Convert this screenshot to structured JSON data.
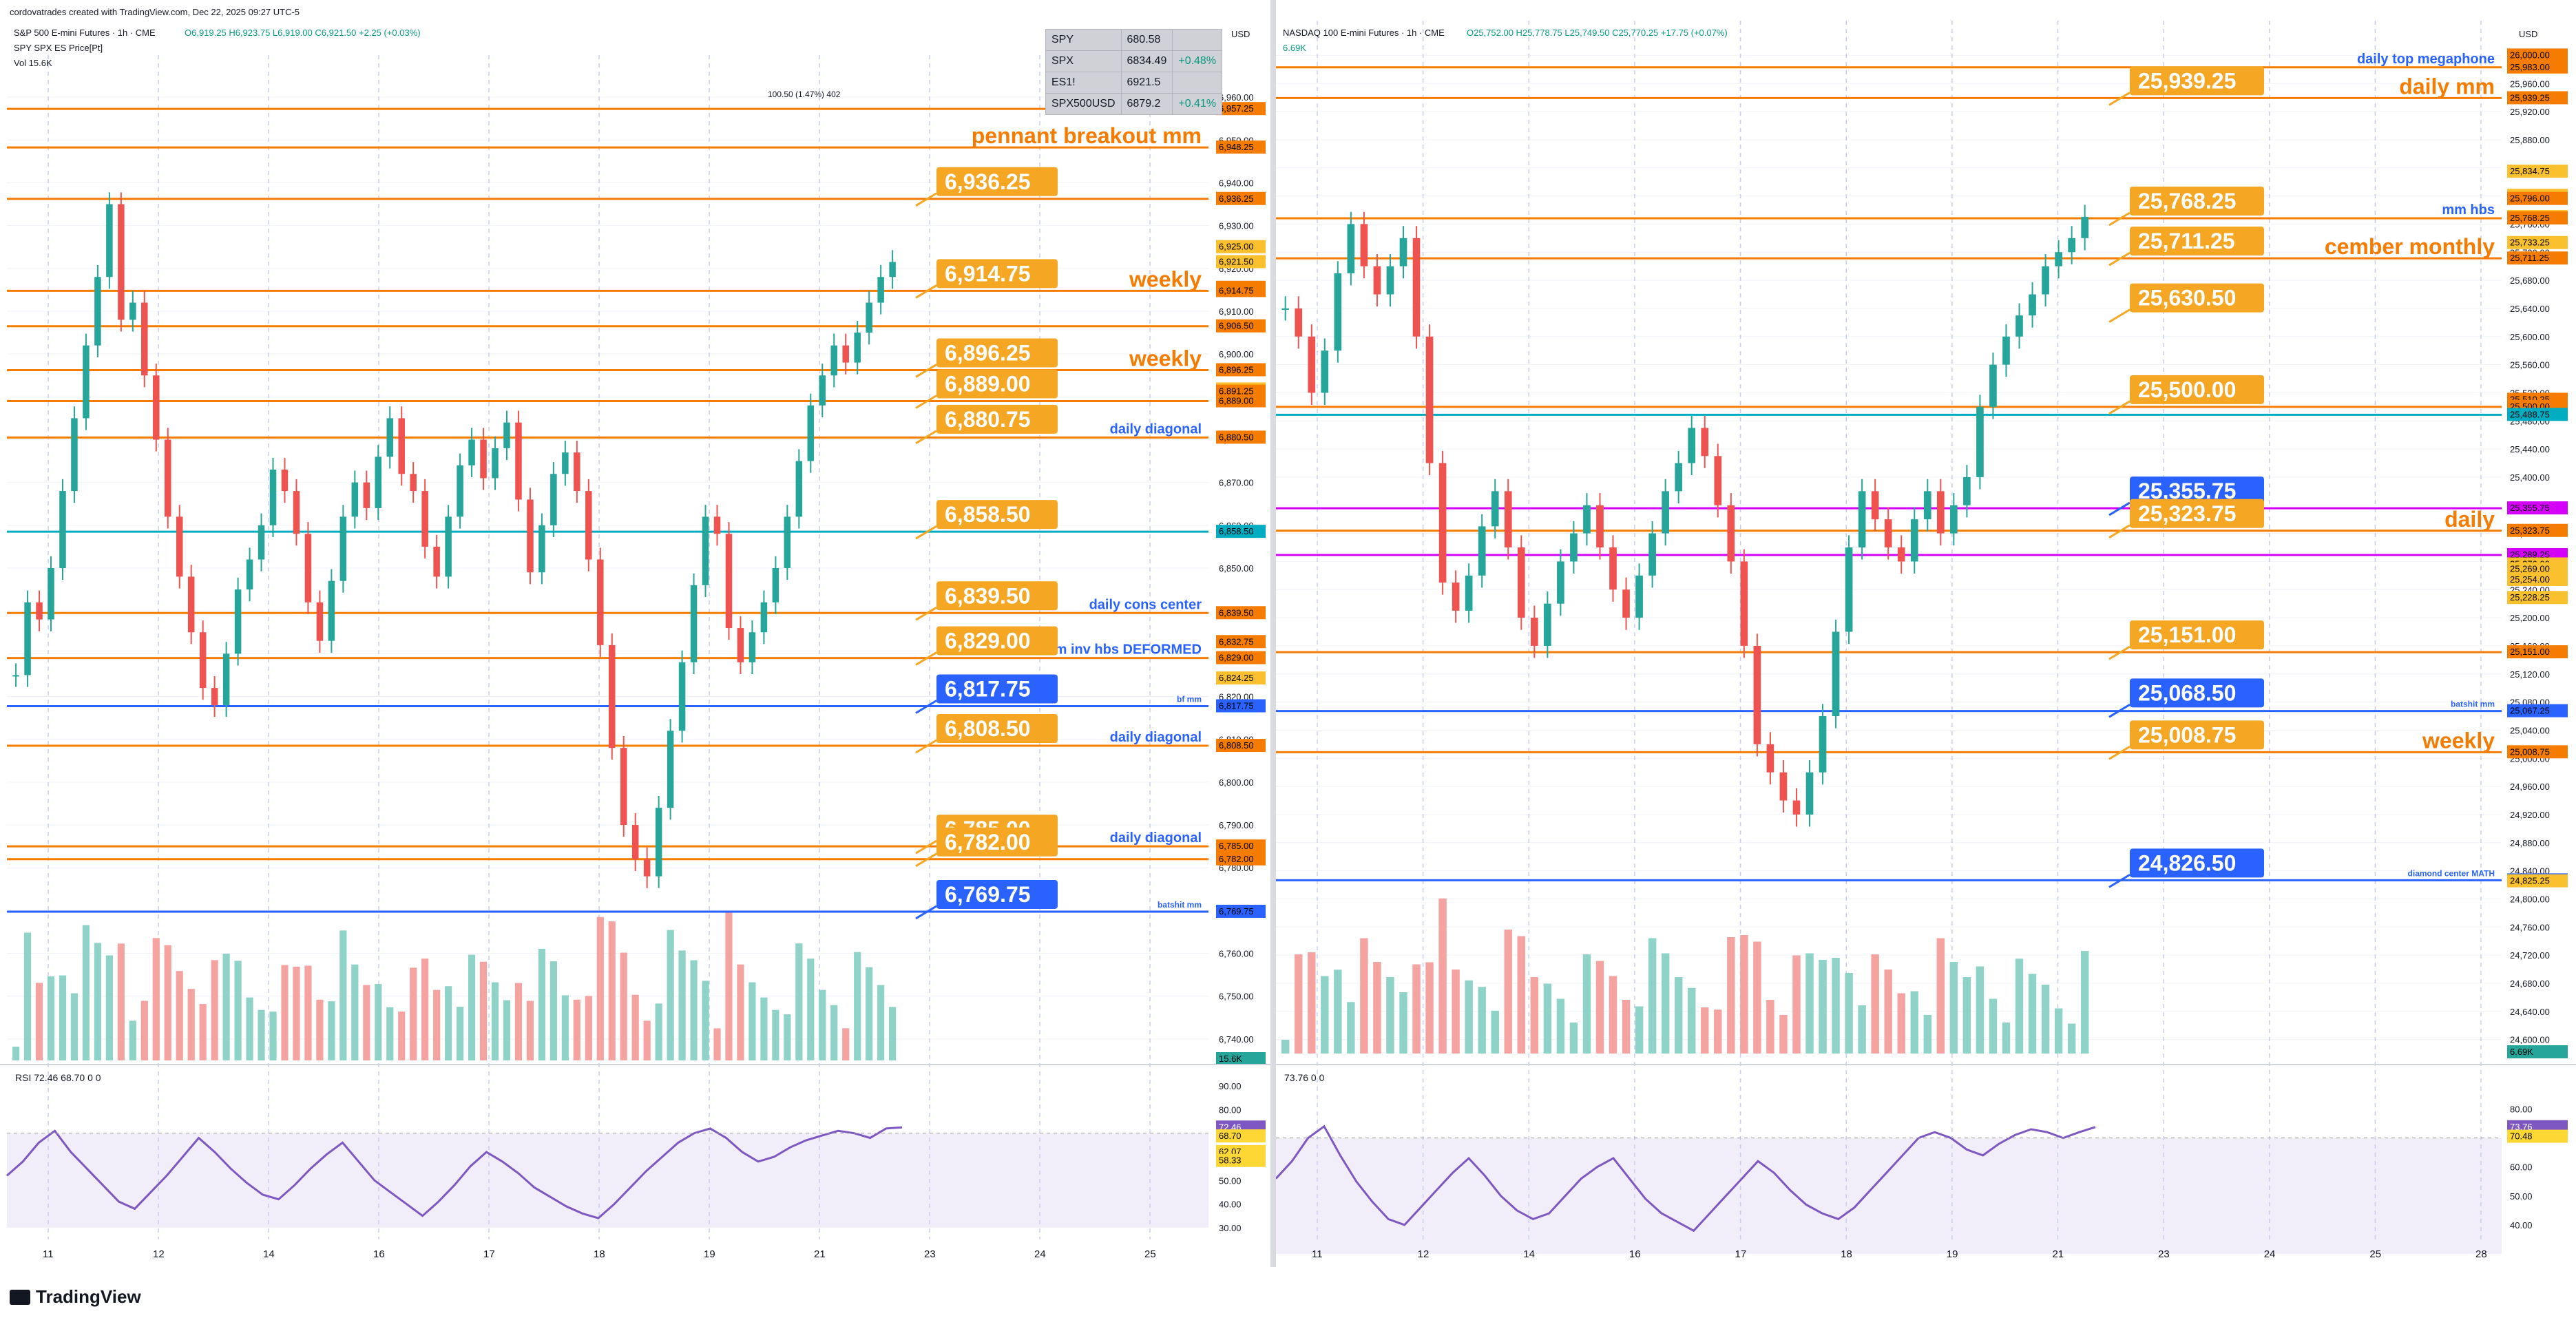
{
  "header": {
    "credit": "cordovatrades created with TradingView.com, Dec 22, 2025 09:27 UTC-5",
    "left_symbol": "S&P 500 E-mini Futures · 1h · CME",
    "left_ohlc": "O6,919.25 H6,923.75 L6,919.00 C6,921.50 +2.25 (+0.03%)",
    "left_overlay": "SPY SPX ES Price[Pt]",
    "left_volume": "Vol 15.6K",
    "right_symbol": "NASDAQ 100 E-mini Futures · 1h · CME",
    "right_ohlc": "O25,752.00 H25,778.75 L25,749.50 C25,770.25 +17.75 (+0.07%)",
    "right_volume": "6.69K",
    "currency": "USD"
  },
  "quote_table": [
    {
      "sym": "SPY",
      "price": "680.58",
      "chg": ""
    },
    {
      "sym": "SPX",
      "price": "6834.49",
      "chg": "+0.48%"
    },
    {
      "sym": "ES1!",
      "price": "6921.5",
      "chg": ""
    },
    {
      "sym": "SPX500USD",
      "price": "6879.2",
      "chg": "+0.41%"
    }
  ],
  "footer": {
    "logo": "TradingView"
  },
  "colors": {
    "orange": "#f5a623",
    "blue": "#2962ff",
    "cyan": "#00bcd4",
    "magenta": "#e040fb",
    "up": "#26a69a",
    "down": "#ef5350",
    "rsi": "#7e57c2"
  },
  "chart_data": [
    {
      "type": "candlestick",
      "panel": "left",
      "symbol": "S&P 500 E-mini Futures",
      "interval": "1h",
      "ylim": [
        6735,
        6965
      ],
      "y_ticks": [
        "6,960.00",
        "6,950.00",
        "6,940.00",
        "6,930.00",
        "6,920.00",
        "6,910.00",
        "6,900.00",
        "6,890.00",
        "6,880.00",
        "6,870.00",
        "6,860.00",
        "6,850.00",
        "6,840.00",
        "6,830.00",
        "6,820.00",
        "6,810.00",
        "6,800.00",
        "6,790.00",
        "6,780.00",
        "6,770.00",
        "6,760.00",
        "6,750.00",
        "6,740.00"
      ],
      "x_ticks": [
        "11",
        "12",
        "14",
        "16",
        "17",
        "18",
        "19",
        "21",
        "23",
        "24",
        "25"
      ],
      "closes": [
        6825,
        6842,
        6838,
        6850,
        6868,
        6885,
        6902,
        6918,
        6935,
        6908,
        6912,
        6895,
        6880,
        6862,
        6848,
        6835,
        6822,
        6818,
        6830,
        6845,
        6852,
        6860,
        6873,
        6868,
        6858,
        6842,
        6833,
        6847,
        6862,
        6870,
        6864,
        6876,
        6885,
        6872,
        6868,
        6855,
        6848,
        6862,
        6874,
        6880,
        6871,
        6878,
        6884,
        6866,
        6849,
        6860,
        6872,
        6877,
        6868,
        6852,
        6832,
        6808,
        6790,
        6782,
        6778,
        6794,
        6812,
        6828,
        6846,
        6862,
        6858,
        6836,
        6828,
        6835,
        6842,
        6850,
        6862,
        6875,
        6888,
        6895,
        6902,
        6898,
        6905,
        6912,
        6918,
        6921.5
      ],
      "price_labels": [
        "6,957.25",
        "6,948.25",
        "6,936.25",
        "6,925.00",
        "6,921.50",
        "6,915.50",
        "6,914.75",
        "6,906.50",
        "6,896.25",
        "6,891.75",
        "6,891.25",
        "6,889.00",
        "6,880.50",
        "6,858.50",
        "6,839.50",
        "6,832.75",
        "6,829.00",
        "6,824.25",
        "6,817.75",
        "6,808.50",
        "6,785.00",
        "6,782.00",
        "6,769.75",
        "15.6K"
      ],
      "levels": [
        {
          "price": 6957.25,
          "color": "#f57c00",
          "label": ""
        },
        {
          "price": 6948.25,
          "color": "#f57c00",
          "label": "pennant breakout mm"
        },
        {
          "price": 6936.25,
          "color": "#f57c00",
          "label": ""
        },
        {
          "price": 6914.75,
          "color": "#f57c00",
          "label": "weekly"
        },
        {
          "price": 6906.5,
          "color": "#f57c00",
          "label": ""
        },
        {
          "price": 6896.25,
          "color": "#f57c00",
          "label": "weekly"
        },
        {
          "price": 6889.0,
          "color": "#f57c00",
          "label": ""
        },
        {
          "price": 6880.5,
          "color": "#f57c00",
          "label": "daily diagonal"
        },
        {
          "price": 6858.5,
          "color": "#00acc1",
          "label": ""
        },
        {
          "price": 6839.5,
          "color": "#f57c00",
          "label": "daily cons center"
        },
        {
          "price": 6829.0,
          "color": "#f57c00",
          "label": "mm inv hbs  DEFORMED"
        },
        {
          "price": 6817.75,
          "color": "#2962ff",
          "label": "bf mm"
        },
        {
          "price": 6808.5,
          "color": "#f57c00",
          "label": "daily diagonal"
        },
        {
          "price": 6785.0,
          "color": "#f57c00",
          "label": "daily diagonal"
        },
        {
          "price": 6782.0,
          "color": "#f57c00",
          "label": ""
        },
        {
          "price": 6769.75,
          "color": "#2962ff",
          "label": "batshit mm"
        }
      ],
      "callouts": [
        "6,936.25",
        "6,914.75",
        "6,896.25",
        "6,889.00",
        "6,880.75",
        "6,858.50",
        "6,839.50",
        "6,829.00",
        "6,817.75",
        "6,808.50",
        "6,785.00",
        "6,782.00",
        "6,769.75"
      ],
      "annotation": "100.50 (1.47%) 402",
      "volume_note": "volume bars shown as histogram",
      "rsi": {
        "label": "RSI 72.46 68.70 0 0",
        "ylim": [
          25,
          95
        ],
        "y_ticks": [
          "90.00",
          "80.00",
          "70.00",
          "60.00",
          "50.00",
          "40.00",
          "30.00"
        ],
        "values": [
          52,
          58,
          66,
          71,
          62,
          55,
          48,
          41,
          38,
          45,
          52,
          60,
          68,
          62,
          55,
          49,
          44,
          42,
          48,
          55,
          61,
          66,
          58,
          50,
          45,
          40,
          35,
          41,
          48,
          56,
          62,
          58,
          53,
          47,
          43,
          39,
          36,
          34,
          40,
          47,
          54,
          60,
          66,
          70,
          72,
          68,
          62,
          58,
          60,
          64,
          67,
          69,
          71,
          70,
          68,
          72,
          72.46
        ],
        "price_labels": [
          "72.46",
          "68.70",
          "62.07",
          "58.33"
        ]
      }
    },
    {
      "type": "candlestick",
      "panel": "right",
      "symbol": "NASDAQ 100 E-mini Futures",
      "interval": "1h",
      "ylim": [
        24580,
        26020
      ],
      "y_ticks": [
        "26,000.00",
        "25,960.00",
        "25,920.00",
        "25,880.00",
        "25,840.00",
        "25,800.00",
        "25,760.00",
        "25,720.00",
        "25,680.00",
        "25,640.00",
        "25,600.00",
        "25,560.00",
        "25,520.00",
        "25,480.00",
        "25,440.00",
        "25,400.00",
        "25,360.00",
        "25,320.00",
        "25,280.00",
        "25,240.00",
        "25,200.00",
        "25,160.00",
        "25,120.00",
        "25,080.00",
        "25,040.00",
        "25,000.00",
        "24,960.00",
        "24,920.00",
        "24,880.00",
        "24,840.00",
        "24,800.00",
        "24,760.00",
        "24,720.00",
        "24,680.00",
        "24,640.00",
        "24,600.00"
      ],
      "x_ticks": [
        "11",
        "12",
        "14",
        "16",
        "17",
        "18",
        "19",
        "21",
        "23",
        "24",
        "25",
        "28"
      ],
      "closes": [
        25640,
        25600,
        25520,
        25580,
        25690,
        25760,
        25700,
        25660,
        25700,
        25740,
        25600,
        25420,
        25250,
        25210,
        25260,
        25330,
        25380,
        25300,
        25200,
        25160,
        25220,
        25280,
        25320,
        25360,
        25300,
        25240,
        25200,
        25260,
        25320,
        25380,
        25420,
        25470,
        25430,
        25360,
        25280,
        25160,
        25020,
        24980,
        24940,
        24920,
        24980,
        25060,
        25180,
        25300,
        25380,
        25340,
        25300,
        25280,
        25340,
        25380,
        25320,
        25360,
        25400,
        25500,
        25560,
        25600,
        25630,
        25660,
        25700,
        25720,
        25740,
        25770.25
      ],
      "price_labels": [
        "26,000.00",
        "25,983.00",
        "25,939.25",
        "25,834.75",
        "25,800.50",
        "25,796.00",
        "25,770.25",
        "25,768.25",
        "25,733.25",
        "25,711.25",
        "25,510.25",
        "25,500.00",
        "25,488.75",
        "25,355.75",
        "25,323.75",
        "25,289.25",
        "25,276.00",
        "25,269.00",
        "25,254.00",
        "25,228.25",
        "25,151.00",
        "25,067.25",
        "25,008.75",
        "24,826.50",
        "24,825.25",
        "6.69K"
      ],
      "levels": [
        {
          "price": 25983.0,
          "color": "#f57c00",
          "label": "daily top megaphone"
        },
        {
          "price": 25939.25,
          "color": "#f57c00",
          "label": "daily mm"
        },
        {
          "price": 25768.25,
          "color": "#f57c00",
          "label": "mm hbs"
        },
        {
          "price": 25711.25,
          "color": "#f57c00",
          "label": "cember monthly"
        },
        {
          "price": 25500.0,
          "color": "#f57c00",
          "label": ""
        },
        {
          "price": 25488.75,
          "color": "#00acc1",
          "label": ""
        },
        {
          "price": 25355.75,
          "color": "#d500f9",
          "label": ""
        },
        {
          "price": 25323.75,
          "color": "#f57c00",
          "label": "daily"
        },
        {
          "price": 25289.25,
          "color": "#d500f9",
          "label": ""
        },
        {
          "price": 25151.0,
          "color": "#f57c00",
          "label": ""
        },
        {
          "price": 25067.25,
          "color": "#2962ff",
          "label": "batshit mm"
        },
        {
          "price": 25008.75,
          "color": "#f57c00",
          "label": "weekly"
        },
        {
          "price": 24826.5,
          "color": "#2962ff",
          "label": "diamond center MATH"
        }
      ],
      "callouts": [
        "25,939.25",
        "25,768.25",
        "25,711.25",
        "25,630.50",
        "25,500.00",
        "25,355.75",
        "25,323.75",
        "25,151.00",
        "25,068.50",
        "25,008.75",
        "24,826.50"
      ],
      "rsi": {
        "label": "73.76 0 0",
        "ylim": [
          35,
          92
        ],
        "y_ticks": [
          "80.00",
          "70.00",
          "60.00",
          "50.00",
          "40.00"
        ],
        "values": [
          56,
          62,
          70,
          74,
          64,
          55,
          48,
          42,
          40,
          46,
          52,
          58,
          63,
          57,
          50,
          45,
          42,
          44,
          50,
          56,
          60,
          63,
          56,
          49,
          44,
          41,
          38,
          44,
          50,
          56,
          62,
          58,
          52,
          47,
          44,
          42,
          46,
          52,
          58,
          64,
          70,
          72,
          70,
          66,
          64,
          68,
          71,
          73,
          72,
          70,
          72,
          73.76
        ],
        "price_labels": [
          "73.76",
          "70.48"
        ]
      }
    }
  ]
}
